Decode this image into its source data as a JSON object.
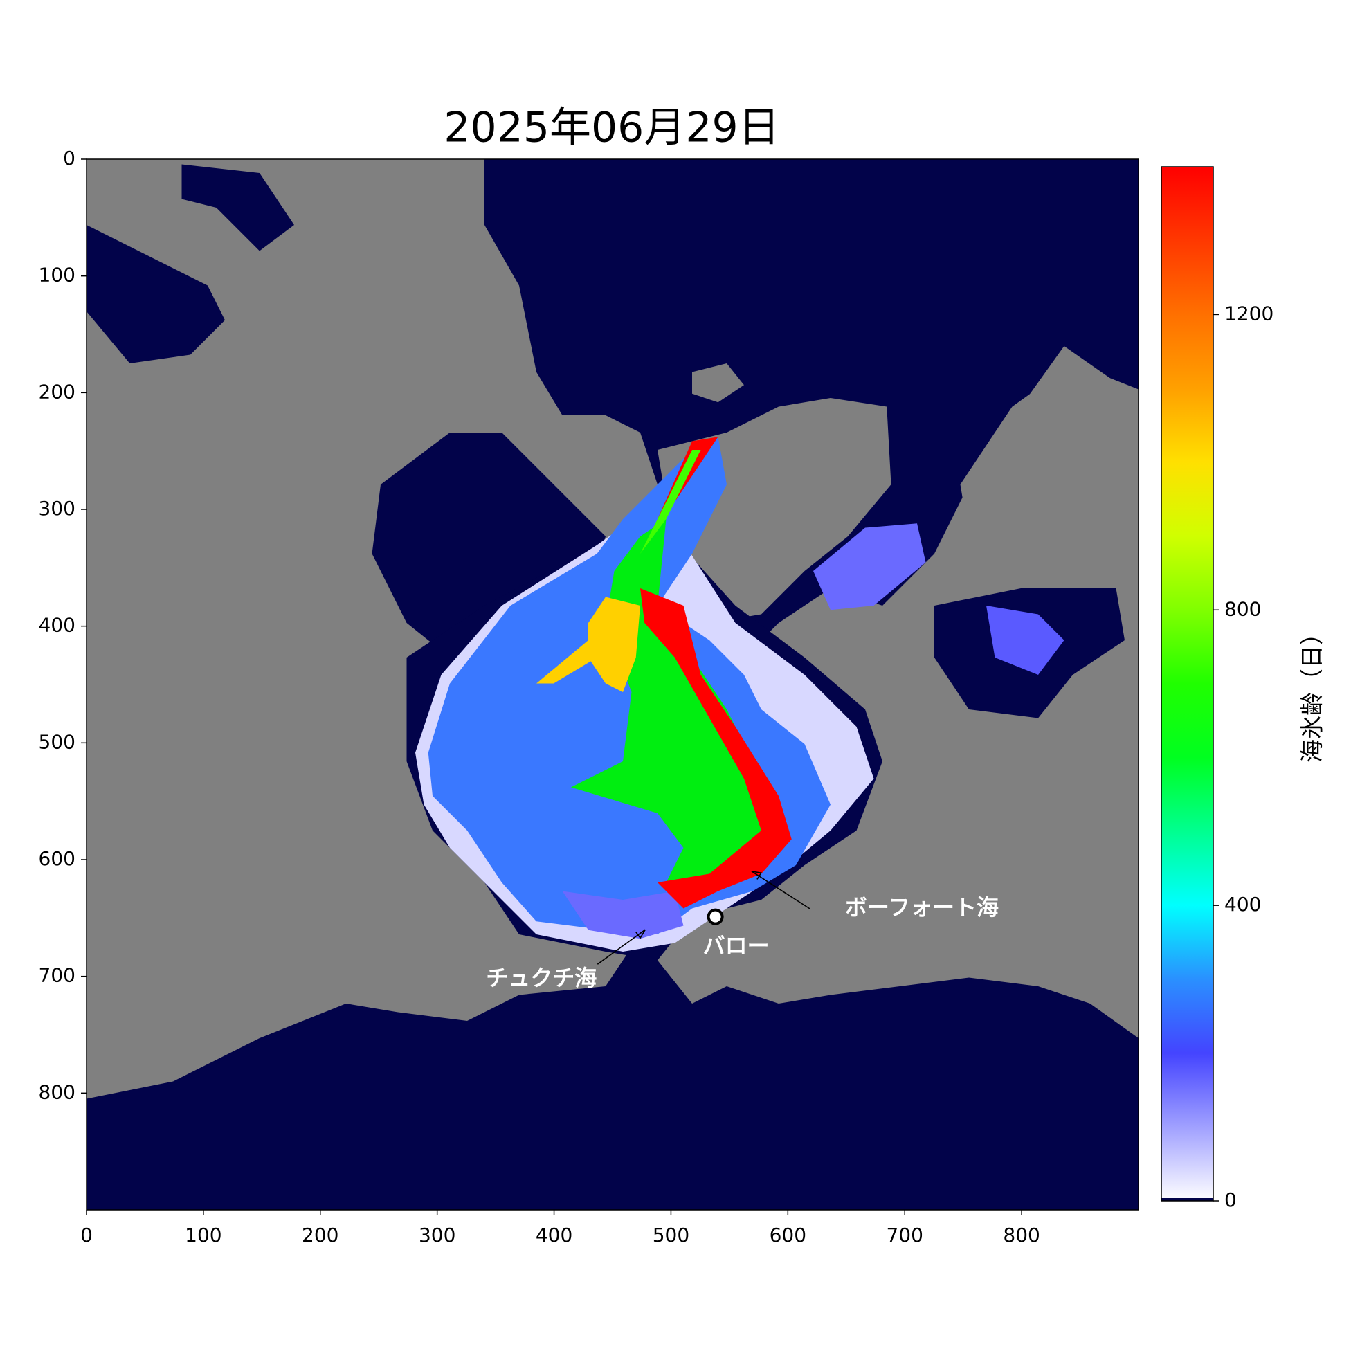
{
  "chart_data": {
    "type": "heatmap",
    "title": "2025年06月29日",
    "xlim": [
      0,
      900
    ],
    "ylim": [
      900,
      0
    ],
    "xticks": [
      0,
      100,
      200,
      300,
      400,
      500,
      600,
      700,
      800
    ],
    "yticks": [
      0,
      100,
      200,
      300,
      400,
      500,
      600,
      700,
      800
    ],
    "colorbar": {
      "label": "海氷齢（日）",
      "lim": [
        0,
        1400
      ],
      "ticks": [
        0,
        400,
        800,
        1200
      ],
      "colors": [
        "#ffffff",
        "#a0a0ff",
        "#4444ff",
        "#2a90ff",
        "#00ffff",
        "#00ff90",
        "#00ff20",
        "#20ff00",
        "#80ff00",
        "#d0ff00",
        "#ffe000",
        "#ffa000",
        "#ff7000",
        "#ff3800",
        "#ff0000"
      ]
    },
    "marker": {
      "label": "バロー",
      "x": 538,
      "y": 649
    },
    "annotations": [
      {
        "text": "ボーフォート海",
        "xy": [
          569,
          610
        ]
      },
      {
        "text": "チュクチ海",
        "xy": [
          478,
          660
        ]
      }
    ]
  }
}
